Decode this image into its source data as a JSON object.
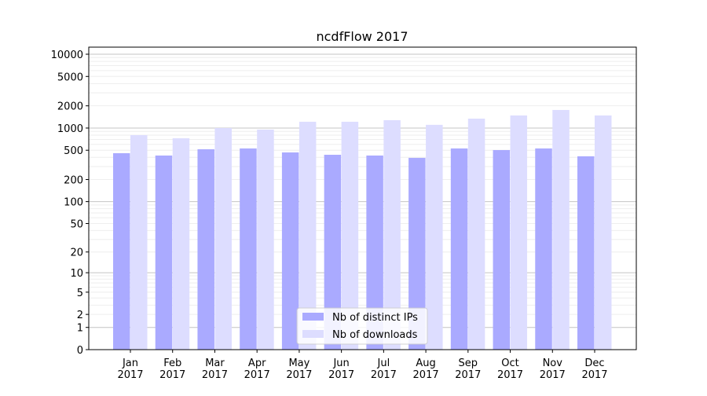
{
  "chart_data": {
    "type": "bar",
    "title": "ncdfFlow 2017",
    "xlabel": "",
    "ylabel": "",
    "y_scale": "log(1+y)",
    "ylim": [
      0,
      13000
    ],
    "yticks": [
      0,
      1,
      2,
      5,
      10,
      20,
      50,
      100,
      200,
      500,
      1000,
      2000,
      5000,
      10000
    ],
    "grid": true,
    "legend_position": "bottom-center",
    "categories": [
      "Jan\n2017",
      "Feb\n2017",
      "Mar\n2017",
      "Apr\n2017",
      "May\n2017",
      "Jun\n2017",
      "Jul\n2017",
      "Aug\n2017",
      "Sep\n2017",
      "Oct\n2017",
      "Nov\n2017",
      "Dec\n2017"
    ],
    "series": [
      {
        "name": "Nb of distinct IPs",
        "color": "#aaaaff",
        "values": [
          456,
          424,
          516,
          529,
          467,
          434,
          424,
          394,
          529,
          503,
          529,
          414
        ]
      },
      {
        "name": "Nb of downloads",
        "color": "#ddddff",
        "values": [
          802,
          727,
          1000,
          952,
          1217,
          1217,
          1277,
          1105,
          1342,
          1481,
          1758,
          1481
        ]
      }
    ]
  }
}
